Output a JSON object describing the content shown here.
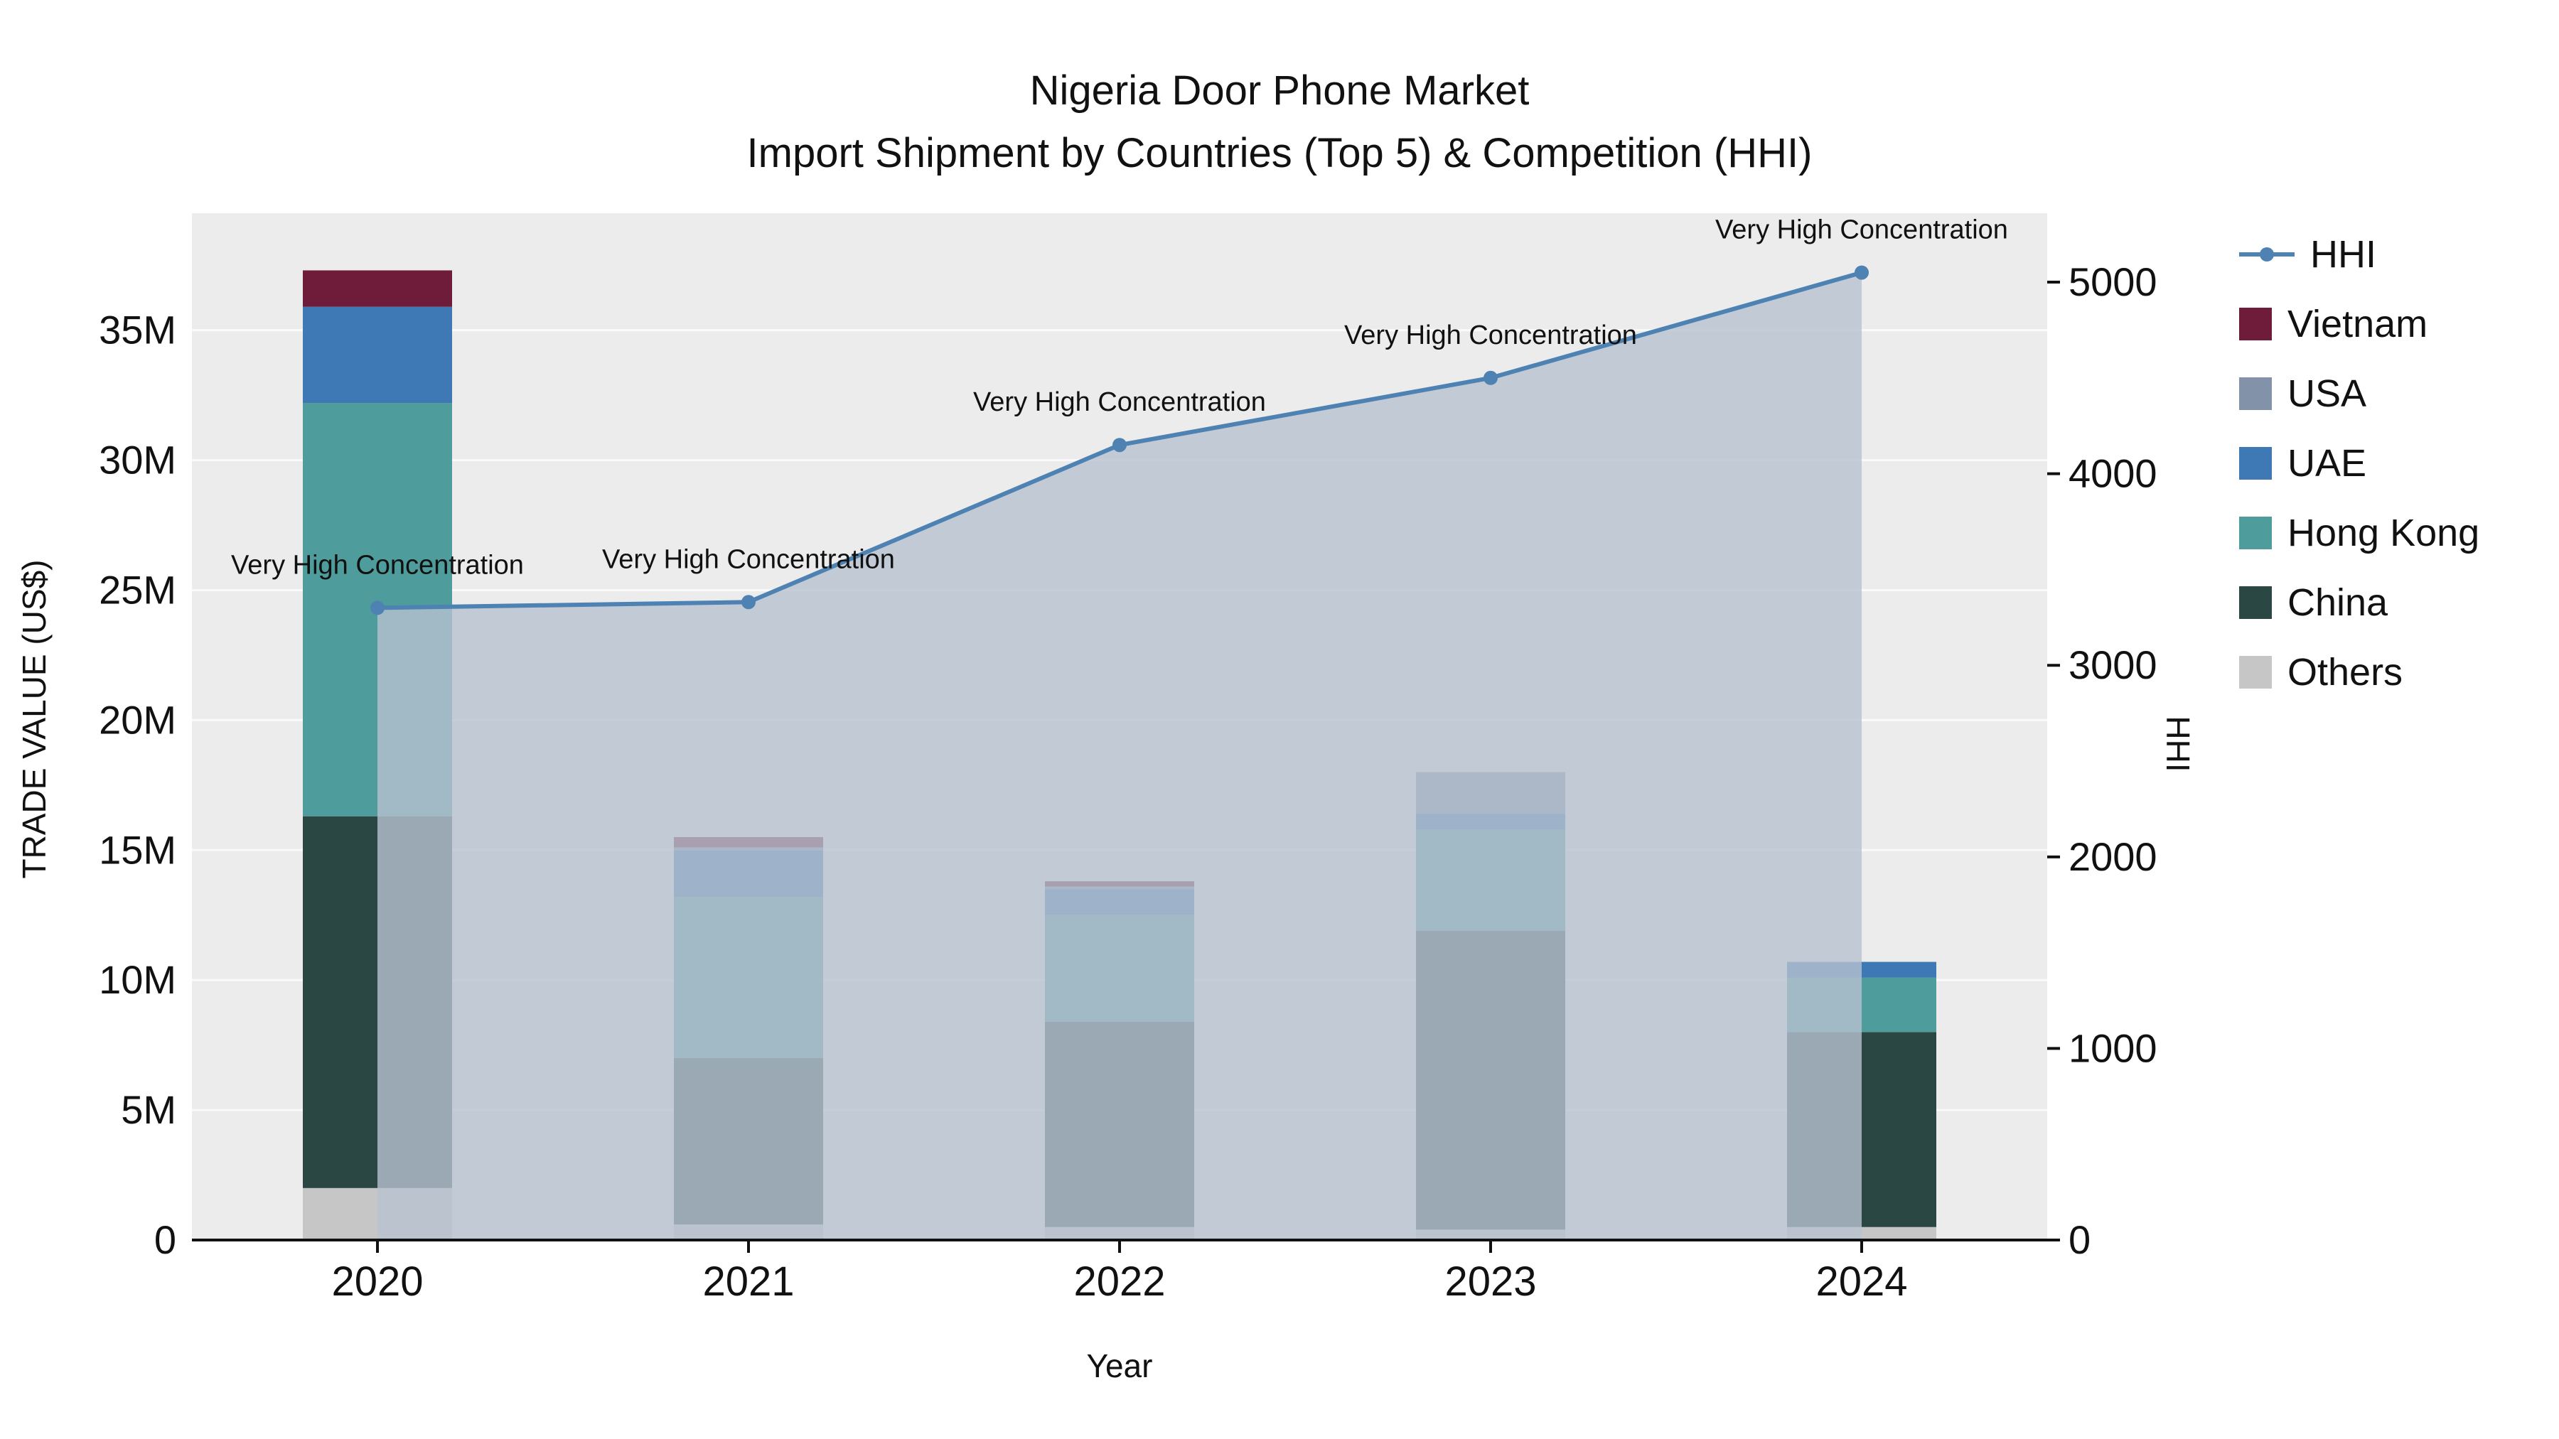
{
  "title": {
    "line1": "Nigeria Door Phone Market",
    "line2": "Import Shipment by Countries (Top 5) & Competition (HHI)"
  },
  "axes": {
    "x_label": "Year",
    "y_left_label": "TRADE VALUE (US$)",
    "y_right_label": "HHI"
  },
  "chart_data": {
    "type": "bar+line",
    "categories": [
      "2020",
      "2021",
      "2022",
      "2023",
      "2024"
    ],
    "bar_series": [
      {
        "name": "Others",
        "color": "#c6c6c6",
        "values": [
          2000000,
          600000,
          500000,
          400000,
          500000
        ]
      },
      {
        "name": "China",
        "color": "#2b4744",
        "values": [
          14300000,
          6400000,
          7900000,
          11500000,
          7500000
        ]
      },
      {
        "name": "Hong Kong",
        "color": "#4e9c9b",
        "values": [
          15900000,
          6200000,
          4100000,
          3900000,
          2100000
        ]
      },
      {
        "name": "UAE",
        "color": "#3e79b6",
        "values": [
          3700000,
          1800000,
          1000000,
          600000,
          600000
        ]
      },
      {
        "name": "USA",
        "color": "#8292a9",
        "values": [
          0,
          100000,
          100000,
          1600000,
          0
        ]
      },
      {
        "name": "Vietnam",
        "color": "#6e1c3a",
        "values": [
          1400000,
          400000,
          200000,
          0,
          0
        ]
      }
    ],
    "line_series": {
      "name": "HHI",
      "color": "#4d82b3",
      "area_fill": "#b7c2cf",
      "values": [
        3300,
        3330,
        4150,
        4500,
        5050
      ]
    },
    "annotations": [
      "Very High Concentration",
      "Very High Concentration",
      "Very High Concentration",
      "Very High Concentration",
      "Very High Concentration"
    ],
    "y_left_ticks": [
      {
        "v": 0,
        "label": "0"
      },
      {
        "v": 5000000,
        "label": "5M"
      },
      {
        "v": 10000000,
        "label": "10M"
      },
      {
        "v": 15000000,
        "label": "15M"
      },
      {
        "v": 20000000,
        "label": "20M"
      },
      {
        "v": 25000000,
        "label": "25M"
      },
      {
        "v": 30000000,
        "label": "30M"
      },
      {
        "v": 35000000,
        "label": "35M"
      }
    ],
    "y_right_ticks": [
      {
        "v": 0,
        "label": "0"
      },
      {
        "v": 1000,
        "label": "1000"
      },
      {
        "v": 2000,
        "label": "2000"
      },
      {
        "v": 3000,
        "label": "3000"
      },
      {
        "v": 4000,
        "label": "4000"
      },
      {
        "v": 5000,
        "label": "5000"
      }
    ],
    "y_left_max": 39500000,
    "y_right_max": 5360,
    "plot_bg": "#ececec",
    "grid_color": "#fafafa"
  },
  "legend": {
    "items": [
      {
        "label": "HHI",
        "type": "line",
        "color": "#4d82b3"
      },
      {
        "label": "Vietnam",
        "type": "swatch",
        "color": "#6e1c3a"
      },
      {
        "label": "USA",
        "type": "swatch",
        "color": "#8292a9"
      },
      {
        "label": "UAE",
        "type": "swatch",
        "color": "#3e79b6"
      },
      {
        "label": "Hong Kong",
        "type": "swatch",
        "color": "#4e9c9b"
      },
      {
        "label": "China",
        "type": "swatch",
        "color": "#2b4744"
      },
      {
        "label": "Others",
        "type": "swatch",
        "color": "#c6c6c6"
      }
    ]
  }
}
